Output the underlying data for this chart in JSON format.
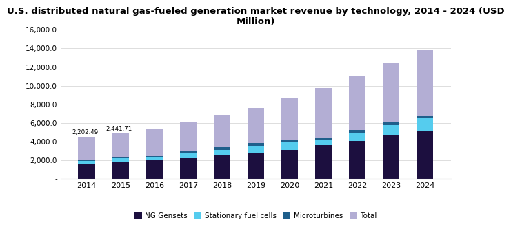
{
  "title": "U.S. distributed natural gas-fueled generation market revenue by technology, 2014 - 2024 (USD\nMillion)",
  "years": [
    2014,
    2015,
    2016,
    2017,
    2018,
    2019,
    2020,
    2021,
    2022,
    2023,
    2024
  ],
  "ng_gensets": [
    1650,
    1850,
    2000,
    2250,
    2500,
    2850,
    3150,
    3650,
    4100,
    4750,
    5200
  ],
  "stationary_fuel_cells": [
    300,
    380,
    300,
    480,
    600,
    680,
    850,
    600,
    850,
    1050,
    1350
  ],
  "microturbines": [
    100,
    120,
    150,
    220,
    280,
    320,
    200,
    200,
    300,
    300,
    250
  ],
  "total_heights": [
    4500,
    4900,
    5400,
    6150,
    6900,
    7600,
    8700,
    9750,
    11100,
    12450,
    13800
  ],
  "annotations": [
    {
      "x": 0,
      "text": "2,202.49"
    },
    {
      "x": 1,
      "text": "2,441.71"
    }
  ],
  "legend_labels": [
    "NG Gensets",
    "Stationary fuel cells",
    "Microturbines",
    "Total"
  ],
  "colors": {
    "ng_gensets": "#1c0f3f",
    "stationary_fuel_cells": "#55ccee",
    "microturbines": "#1f5f8b",
    "total": "#b3aed4"
  },
  "ylim": [
    0,
    16000
  ],
  "yticks": [
    0,
    2000,
    4000,
    6000,
    8000,
    10000,
    12000,
    14000,
    16000
  ],
  "background_color": "#ffffff",
  "title_fontsize": 9.5,
  "bar_width": 0.5
}
